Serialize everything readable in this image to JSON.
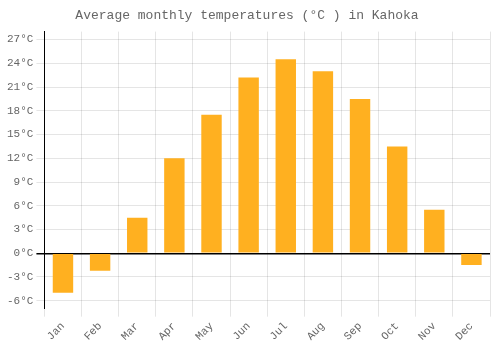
{
  "chart_data": {
    "type": "bar",
    "title": "Average monthly temperatures (°C ) in Kahoka",
    "categories": [
      "Jan",
      "Feb",
      "Mar",
      "Apr",
      "May",
      "Jun",
      "Jul",
      "Aug",
      "Sep",
      "Oct",
      "Nov",
      "Dec"
    ],
    "values": [
      -5.0,
      -2.2,
      4.5,
      12.0,
      17.5,
      22.2,
      24.5,
      23.0,
      19.5,
      13.5,
      5.5,
      -1.5
    ],
    "color": "#FFB020",
    "ylim": [
      -7,
      28
    ],
    "yticks": [
      {
        "value": -6,
        "label": "-6°C"
      },
      {
        "value": -3,
        "label": "-3°C"
      },
      {
        "value": 0,
        "label": "0°C"
      },
      {
        "value": 3,
        "label": "3°C"
      },
      {
        "value": 6,
        "label": "6°C"
      },
      {
        "value": 9,
        "label": "9°C"
      },
      {
        "value": 12,
        "label": "12°C"
      },
      {
        "value": 15,
        "label": "15°C"
      },
      {
        "value": 18,
        "label": "18°C"
      },
      {
        "value": 21,
        "label": "21°C"
      },
      {
        "value": 24,
        "label": "24°C"
      },
      {
        "value": 27,
        "label": "27°C"
      }
    ],
    "grid": true
  }
}
